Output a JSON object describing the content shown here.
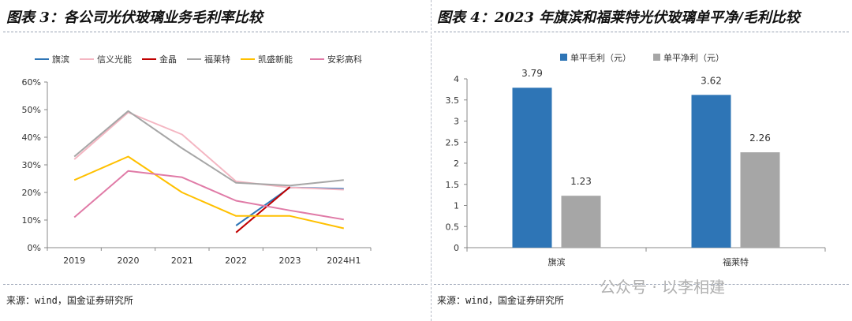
{
  "left": {
    "title": "图表 3：各公司光伏玻璃业务毛利率比较",
    "source": "来源：wind，国金证券研究所"
  },
  "right": {
    "title": "图表 4：2023 年旗滨和福莱特光伏玻璃单平净/毛利比较",
    "source": "来源：wind，国金证券研究所"
  },
  "watermark": "公众号 · 以李相建",
  "chart_data": [
    {
      "type": "line",
      "title": "",
      "xlabel": "",
      "ylabel": "",
      "categories": [
        "2019",
        "2020",
        "2021",
        "2022",
        "2023",
        "2024H1"
      ],
      "yticks": [
        "0%",
        "10%",
        "20%",
        "30%",
        "40%",
        "50%",
        "60%"
      ],
      "ylim": [
        0,
        60
      ],
      "legend_position": "top",
      "grid": false,
      "series": [
        {
          "name": "旗滨",
          "color": "#2e75b6",
          "values": [
            null,
            null,
            null,
            8.0,
            21.8,
            21.3
          ]
        },
        {
          "name": "信义光能",
          "color": "#f4b6c2",
          "values": [
            32.0,
            49.0,
            41.0,
            24.0,
            21.8,
            21.0
          ]
        },
        {
          "name": "金晶",
          "color": "#c00000",
          "values": [
            null,
            null,
            null,
            5.5,
            22.0,
            null
          ]
        },
        {
          "name": "福莱特",
          "color": "#a6a6a6",
          "values": [
            33.0,
            49.5,
            36.0,
            23.5,
            22.5,
            24.5
          ]
        },
        {
          "name": "凯盛新能",
          "color": "#ffc000",
          "values": [
            24.5,
            33.0,
            20.0,
            11.5,
            11.5,
            7.0
          ]
        },
        {
          "name": "安彩高科",
          "color": "#e07ba7",
          "values": [
            11.0,
            27.8,
            25.5,
            17.0,
            13.5,
            10.2
          ]
        }
      ]
    },
    {
      "type": "bar",
      "title": "",
      "xlabel": "",
      "ylabel": "",
      "categories": [
        "旗滨",
        "福莱特"
      ],
      "yticks": [
        "0",
        "0.5",
        "1",
        "1.5",
        "2",
        "2.5",
        "3",
        "3.5",
        "4"
      ],
      "ylim": [
        0,
        4
      ],
      "legend_position": "top",
      "grid": false,
      "series": [
        {
          "name": "单平毛利（元）",
          "color": "#2e75b6",
          "values": [
            3.79,
            3.62
          ],
          "labels": [
            "3.79",
            "3.62"
          ]
        },
        {
          "name": "单平净利（元）",
          "color": "#a6a6a6",
          "values": [
            1.23,
            2.26
          ],
          "labels": [
            "1.23",
            "2.26"
          ]
        }
      ]
    }
  ]
}
